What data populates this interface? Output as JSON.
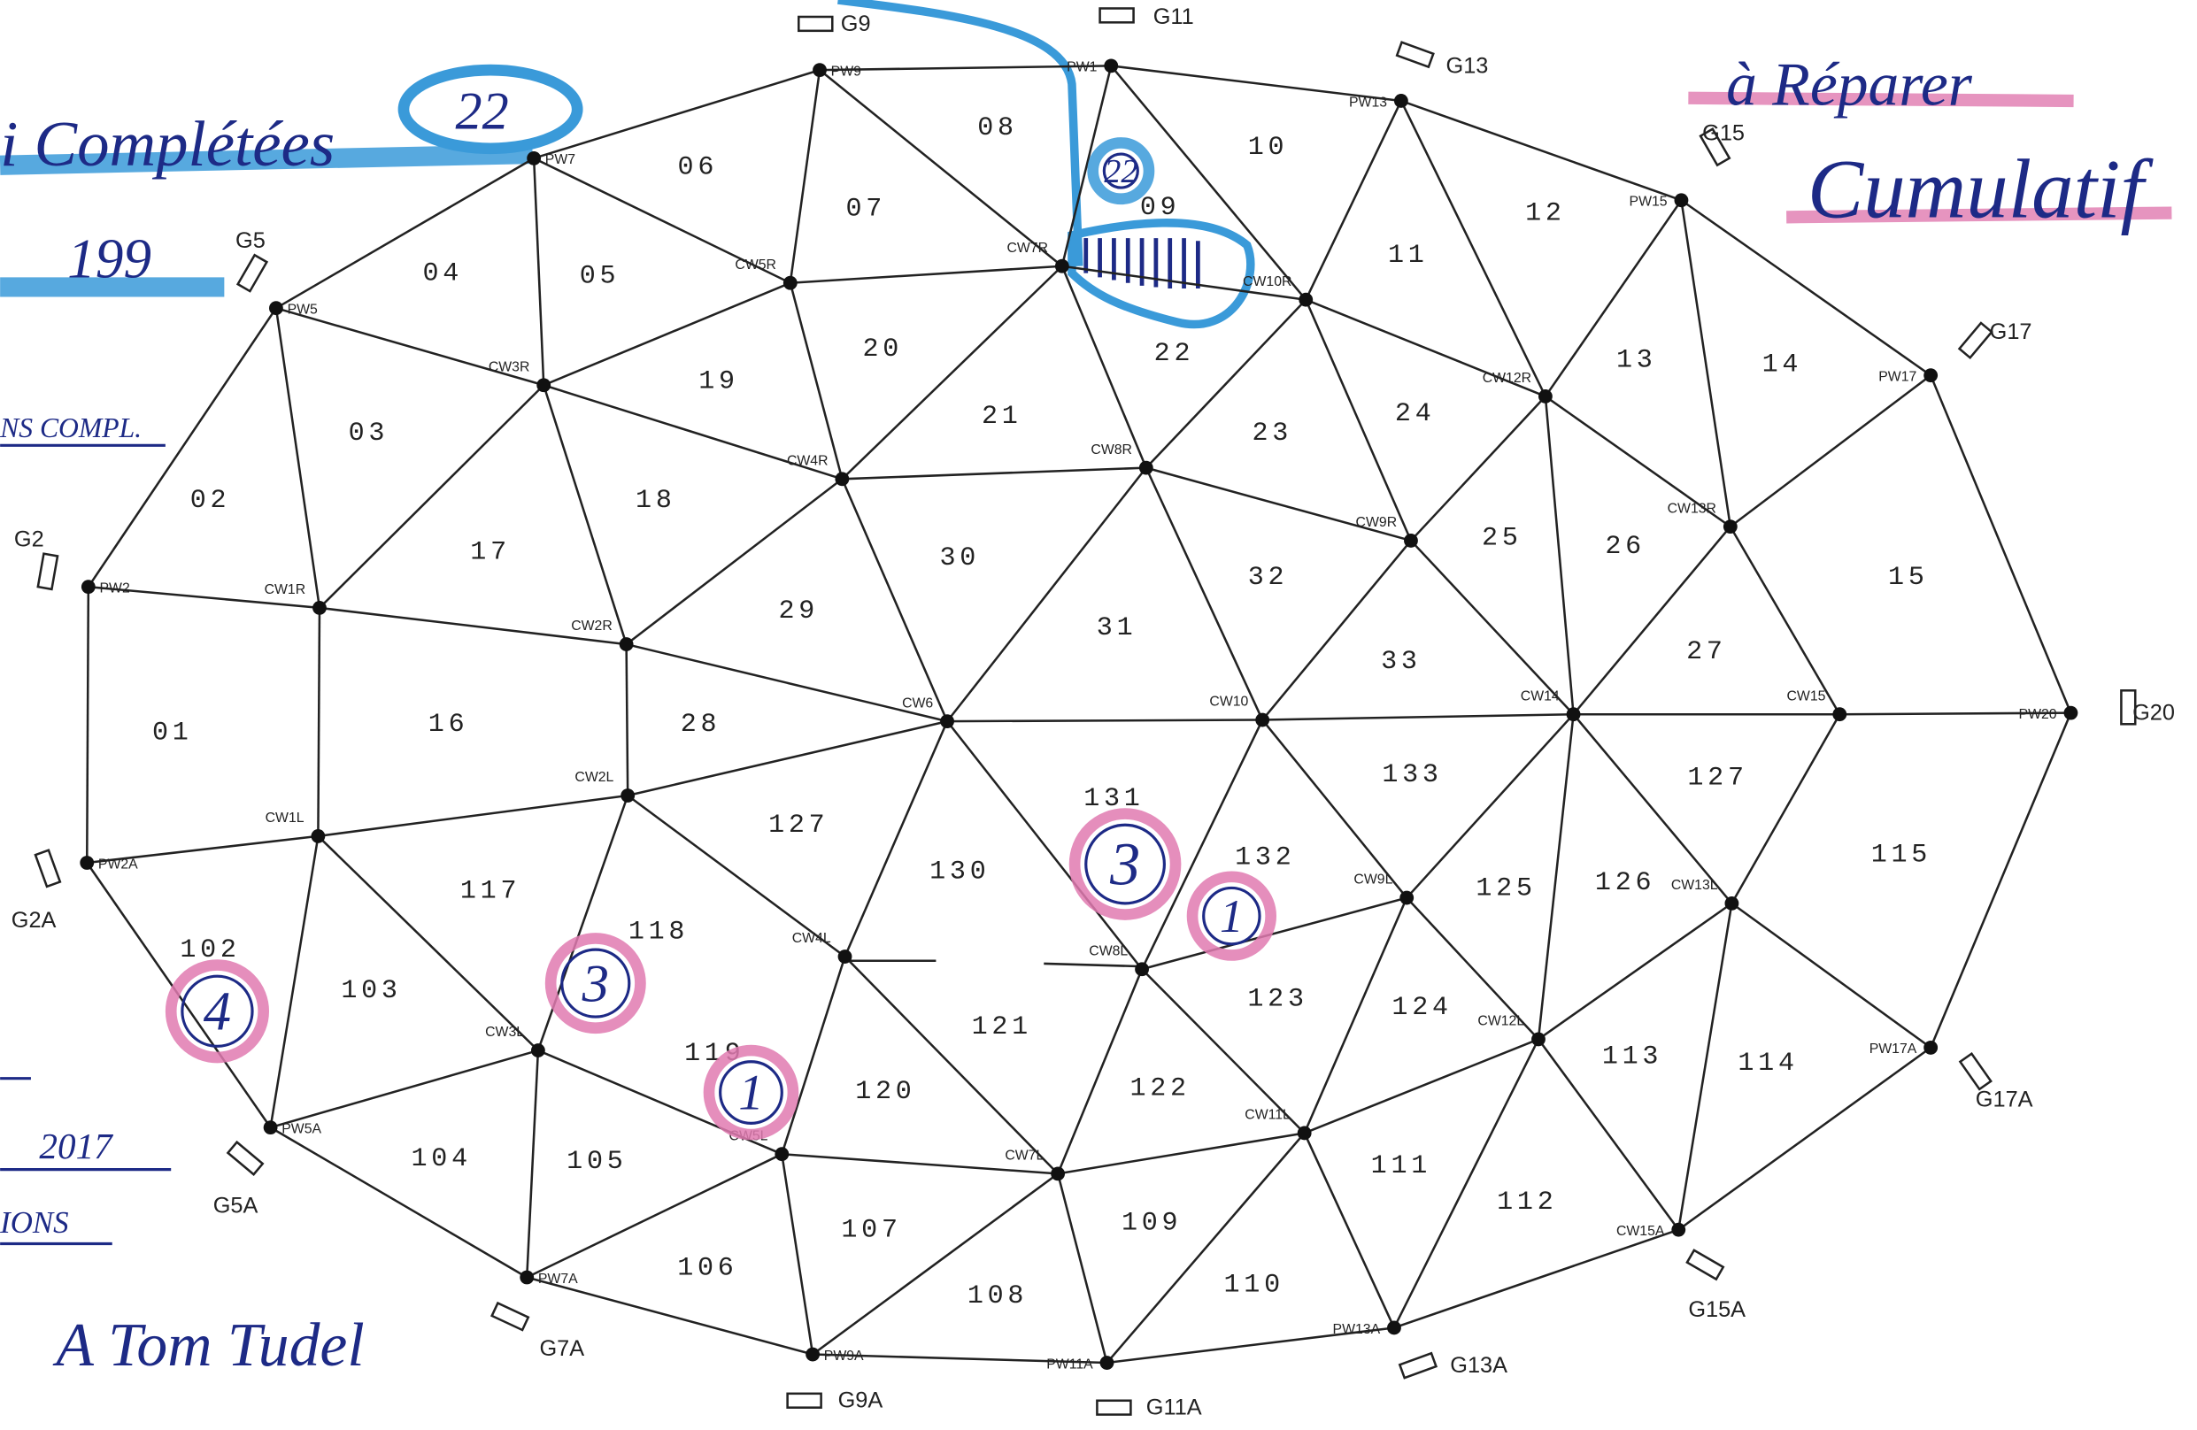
{
  "nodes": [
    {
      "label": "PW9"
    },
    {
      "label": "PW1"
    },
    {
      "label": "PW13"
    },
    {
      "label": "PW15"
    },
    {
      "label": "PW17"
    },
    {
      "label": "PW20"
    },
    {
      "label": "PW17A"
    },
    {
      "label": "CW15A"
    },
    {
      "label": "PW13A"
    },
    {
      "label": "PW11A"
    },
    {
      "label": "PW9A"
    },
    {
      "label": "PW7A"
    },
    {
      "label": "PW5A"
    },
    {
      "label": "PW2A"
    },
    {
      "label": "PW2"
    },
    {
      "label": "PW5"
    },
    {
      "label": "PW7"
    },
    {
      "label": "CW5R"
    },
    {
      "label": "CW7R"
    },
    {
      "label": "CW10R"
    },
    {
      "label": "CW12R"
    },
    {
      "label": "CW3R"
    },
    {
      "label": "CW4R"
    },
    {
      "label": "CW8R"
    },
    {
      "label": "CW9R"
    },
    {
      "label": "CW13R"
    },
    {
      "label": "CW1R"
    },
    {
      "label": "CW2R"
    },
    {
      "label": "CW6"
    },
    {
      "label": "CW10"
    },
    {
      "label": "CW14"
    },
    {
      "label": "CW15"
    },
    {
      "label": "CW1L"
    },
    {
      "label": "CW2L"
    },
    {
      "label": "CW4L"
    },
    {
      "label": "CW8L"
    },
    {
      "label": "CW9L"
    },
    {
      "label": "CW13L"
    },
    {
      "label": "CW3L"
    },
    {
      "label": "CW5L"
    },
    {
      "label": "CW7L"
    },
    {
      "label": "CW11L"
    },
    {
      "label": "CW12L"
    }
  ],
  "regions": [
    "01",
    "02",
    "03",
    "04",
    "05",
    "06",
    "07",
    "08",
    "09",
    "10",
    "11",
    "12",
    "13",
    "14",
    "15",
    "16",
    "17",
    "18",
    "19",
    "20",
    "21",
    "22",
    "23",
    "24",
    "25",
    "26",
    "27",
    "28",
    "29",
    "30",
    "31",
    "32",
    "33",
    "102",
    "103",
    "104",
    "105",
    "106",
    "107",
    "108",
    "109",
    "110",
    "111",
    "112",
    "113",
    "114",
    "115",
    "117",
    "118",
    "119",
    "120",
    "121",
    "122",
    "123",
    "124",
    "125",
    "126",
    "127",
    "127",
    "130",
    "131",
    "132",
    "133"
  ],
  "gauges": [
    "G9",
    "G11",
    "G13",
    "G15",
    "G17",
    "G20",
    "G17A",
    "G15A",
    "G13A",
    "G11A",
    "G9A",
    "G7A",
    "G5A",
    "G2A",
    "G2",
    "G5"
  ],
  "annotations": {
    "completed": "i Complétées",
    "completed_count": "22",
    "total": "199",
    "completed_abbrev": "NS COMPL.",
    "year": "2017",
    "ions": "IONS",
    "signature": "A Tom Tudel",
    "to_repair": "à Réparer",
    "cumulative": "Cumulatif"
  },
  "circled": [
    "22",
    "3",
    "1",
    "3",
    "4",
    "1"
  ]
}
